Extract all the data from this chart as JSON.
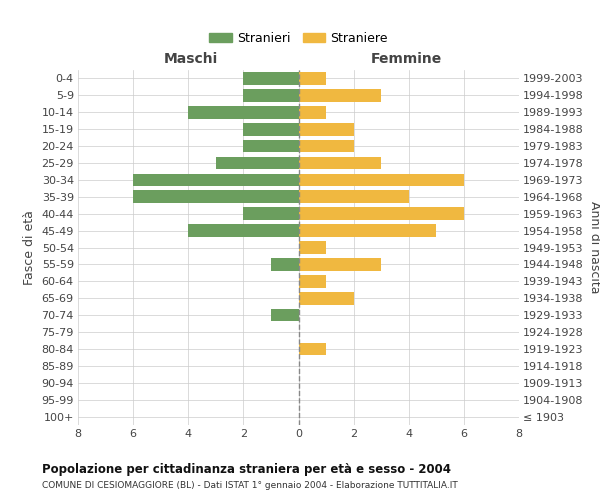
{
  "age_groups": [
    "100+",
    "95-99",
    "90-94",
    "85-89",
    "80-84",
    "75-79",
    "70-74",
    "65-69",
    "60-64",
    "55-59",
    "50-54",
    "45-49",
    "40-44",
    "35-39",
    "30-34",
    "25-29",
    "20-24",
    "15-19",
    "10-14",
    "5-9",
    "0-4"
  ],
  "birth_years": [
    "≤ 1903",
    "1904-1908",
    "1909-1913",
    "1914-1918",
    "1919-1923",
    "1924-1928",
    "1929-1933",
    "1934-1938",
    "1939-1943",
    "1944-1948",
    "1949-1953",
    "1954-1958",
    "1959-1963",
    "1964-1968",
    "1969-1973",
    "1974-1978",
    "1979-1983",
    "1984-1988",
    "1989-1993",
    "1994-1998",
    "1999-2003"
  ],
  "maschi": [
    0,
    0,
    0,
    0,
    0,
    0,
    1,
    0,
    0,
    1,
    0,
    4,
    2,
    6,
    6,
    3,
    2,
    2,
    4,
    2,
    2
  ],
  "femmine": [
    0,
    0,
    0,
    0,
    1,
    0,
    0,
    2,
    1,
    3,
    1,
    5,
    6,
    4,
    6,
    3,
    2,
    2,
    1,
    3,
    1
  ],
  "maschi_color": "#6b9e5e",
  "femmine_color": "#f0b840",
  "background_color": "#ffffff",
  "grid_color": "#cccccc",
  "center_line_color": "#888888",
  "title": "Popolazione per cittadinanza straniera per età e sesso - 2004",
  "subtitle": "COMUNE DI CESIOMAGGIORE (BL) - Dati ISTAT 1° gennaio 2004 - Elaborazione TUTTITALIA.IT",
  "label_maschi": "Maschi",
  "label_femmine": "Femmine",
  "ylabel_left": "Fasce di età",
  "ylabel_right": "Anni di nascita",
  "legend_stranieri": "Stranieri",
  "legend_straniere": "Straniere",
  "xlim": 8
}
